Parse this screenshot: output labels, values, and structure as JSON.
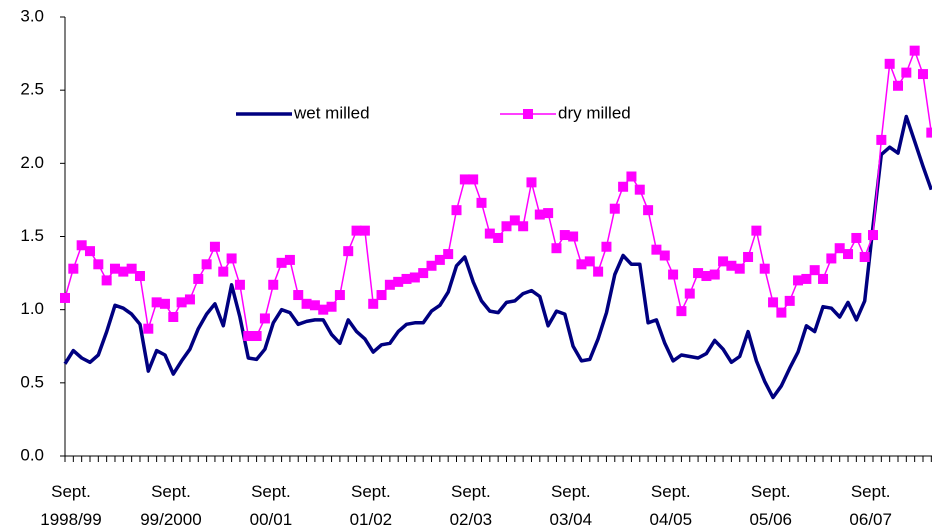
{
  "chart_data": {
    "type": "line",
    "categories": [
      "Sept. 1998/99",
      null,
      null,
      null,
      null,
      null,
      null,
      null,
      null,
      null,
      null,
      null,
      "Sept. 99/2000",
      null,
      null,
      null,
      null,
      null,
      null,
      null,
      null,
      null,
      null,
      null,
      "Sept. 00/01",
      null,
      null,
      null,
      null,
      null,
      null,
      null,
      null,
      null,
      null,
      null,
      "Sept. 01/02",
      null,
      null,
      null,
      null,
      null,
      null,
      null,
      null,
      null,
      null,
      null,
      "Sept. 02/03",
      null,
      null,
      null,
      null,
      null,
      null,
      null,
      null,
      null,
      null,
      null,
      "Sept. 03/04",
      null,
      null,
      null,
      null,
      null,
      null,
      null,
      null,
      null,
      null,
      null,
      "Sept. 04/05",
      null,
      null,
      null,
      null,
      null,
      null,
      null,
      null,
      null,
      null,
      null,
      "Sept. 05/06",
      null,
      null,
      null,
      null,
      null,
      null,
      null,
      null,
      null,
      null,
      null,
      "Sept. 06/07",
      null,
      null,
      null,
      null,
      null,
      null,
      null,
      null
    ],
    "series": [
      {
        "name": "wet milled",
        "color": "#000080",
        "marker": "none",
        "values": [
          0.63,
          0.72,
          0.67,
          0.64,
          0.69,
          0.85,
          1.03,
          1.01,
          0.97,
          0.9,
          0.58,
          0.72,
          0.69,
          0.56,
          0.65,
          0.73,
          0.87,
          0.97,
          1.04,
          0.89,
          1.17,
          0.95,
          0.67,
          0.66,
          0.73,
          0.91,
          1.0,
          0.98,
          0.9,
          0.92,
          0.93,
          0.93,
          0.83,
          0.77,
          0.93,
          0.85,
          0.8,
          0.71,
          0.76,
          0.77,
          0.85,
          0.9,
          0.91,
          0.91,
          0.99,
          1.03,
          1.12,
          1.3,
          1.36,
          1.19,
          1.06,
          0.99,
          0.98,
          1.05,
          1.06,
          1.11,
          1.13,
          1.09,
          0.89,
          0.99,
          0.97,
          0.75,
          0.65,
          0.66,
          0.8,
          0.98,
          1.24,
          1.37,
          1.31,
          1.31,
          0.91,
          0.93,
          0.77,
          0.65,
          0.69,
          0.68,
          0.67,
          0.7,
          0.79,
          0.73,
          0.64,
          0.68,
          0.85,
          0.65,
          0.51,
          0.4,
          0.48,
          0.6,
          0.71,
          0.89,
          0.85,
          1.02,
          1.01,
          0.95,
          1.05,
          0.93,
          1.06,
          1.57,
          2.06,
          2.11,
          2.07,
          2.32,
          2.15,
          1.98,
          1.82
        ]
      },
      {
        "name": "dry milled",
        "color": "#FF00FF",
        "marker": "square",
        "values": [
          1.08,
          1.28,
          1.44,
          1.4,
          1.31,
          1.2,
          1.28,
          1.26,
          1.28,
          1.23,
          0.87,
          1.05,
          1.04,
          0.95,
          1.05,
          1.07,
          1.21,
          1.31,
          1.43,
          1.26,
          1.35,
          1.17,
          0.82,
          0.82,
          0.94,
          1.17,
          1.32,
          1.34,
          1.1,
          1.04,
          1.03,
          1.0,
          1.02,
          1.1,
          1.4,
          1.54,
          1.54,
          1.04,
          1.1,
          1.17,
          1.19,
          1.21,
          1.22,
          1.25,
          1.3,
          1.34,
          1.38,
          1.68,
          1.89,
          1.89,
          1.73,
          1.52,
          1.49,
          1.57,
          1.61,
          1.57,
          1.87,
          1.65,
          1.66,
          1.42,
          1.51,
          1.5,
          1.31,
          1.33,
          1.26,
          1.43,
          1.69,
          1.84,
          1.91,
          1.82,
          1.68,
          1.41,
          1.37,
          1.24,
          0.99,
          1.11,
          1.25,
          1.23,
          1.24,
          1.33,
          1.3,
          1.28,
          1.36,
          1.54,
          1.28,
          1.05,
          0.98,
          1.06,
          1.2,
          1.21,
          1.27,
          1.21,
          1.35,
          1.42,
          1.38,
          1.49,
          1.36,
          1.51,
          2.16,
          2.68,
          2.53,
          2.62,
          2.77,
          2.61,
          2.21
        ]
      }
    ],
    "ylim": [
      0,
      3
    ],
    "yticks": [
      {
        "value": 0,
        "label": "0.0"
      },
      {
        "value": 0.5,
        "label": "0.5"
      },
      {
        "value": 1,
        "label": "1.0"
      },
      {
        "value": 1.5,
        "label": "1.5"
      },
      {
        "value": 2,
        "label": "2.0"
      },
      {
        "value": 2.5,
        "label": "2.5"
      },
      {
        "value": 3,
        "label": "3.0"
      }
    ],
    "grid": false,
    "legend": "upper-center"
  }
}
